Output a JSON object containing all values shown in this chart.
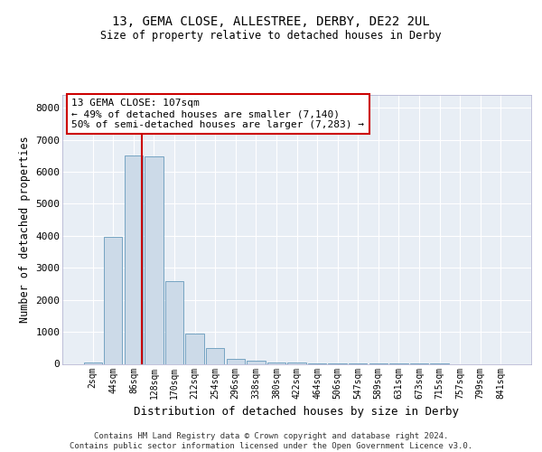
{
  "title_line1": "13, GEMA CLOSE, ALLESTREE, DERBY, DE22 2UL",
  "title_line2": "Size of property relative to detached houses in Derby",
  "xlabel": "Distribution of detached houses by size in Derby",
  "ylabel": "Number of detached properties",
  "bar_color": "#ccdae8",
  "bar_edge_color": "#6699bb",
  "background_color": "#e8eef5",
  "grid_color": "#ffffff",
  "annotation_box_color": "#cc0000",
  "vline_color": "#cc0000",
  "annotation_text": "13 GEMA CLOSE: 107sqm\n← 49% of detached houses are smaller (7,140)\n50% of semi-detached houses are larger (7,283) →",
  "footer_line1": "Contains HM Land Registry data © Crown copyright and database right 2024.",
  "footer_line2": "Contains public sector information licensed under the Open Government Licence v3.0.",
  "categories": [
    "2sqm",
    "44sqm",
    "86sqm",
    "128sqm",
    "170sqm",
    "212sqm",
    "254sqm",
    "296sqm",
    "338sqm",
    "380sqm",
    "422sqm",
    "464sqm",
    "506sqm",
    "547sqm",
    "589sqm",
    "631sqm",
    "673sqm",
    "715sqm",
    "757sqm",
    "799sqm",
    "841sqm"
  ],
  "values": [
    50,
    3980,
    6500,
    6480,
    2580,
    950,
    500,
    155,
    105,
    55,
    30,
    20,
    15,
    10,
    5,
    3,
    2,
    1,
    0,
    0,
    0
  ],
  "ylim": [
    0,
    8400
  ],
  "yticks": [
    0,
    1000,
    2000,
    3000,
    4000,
    5000,
    6000,
    7000,
    8000
  ],
  "vline_x": 2.42
}
